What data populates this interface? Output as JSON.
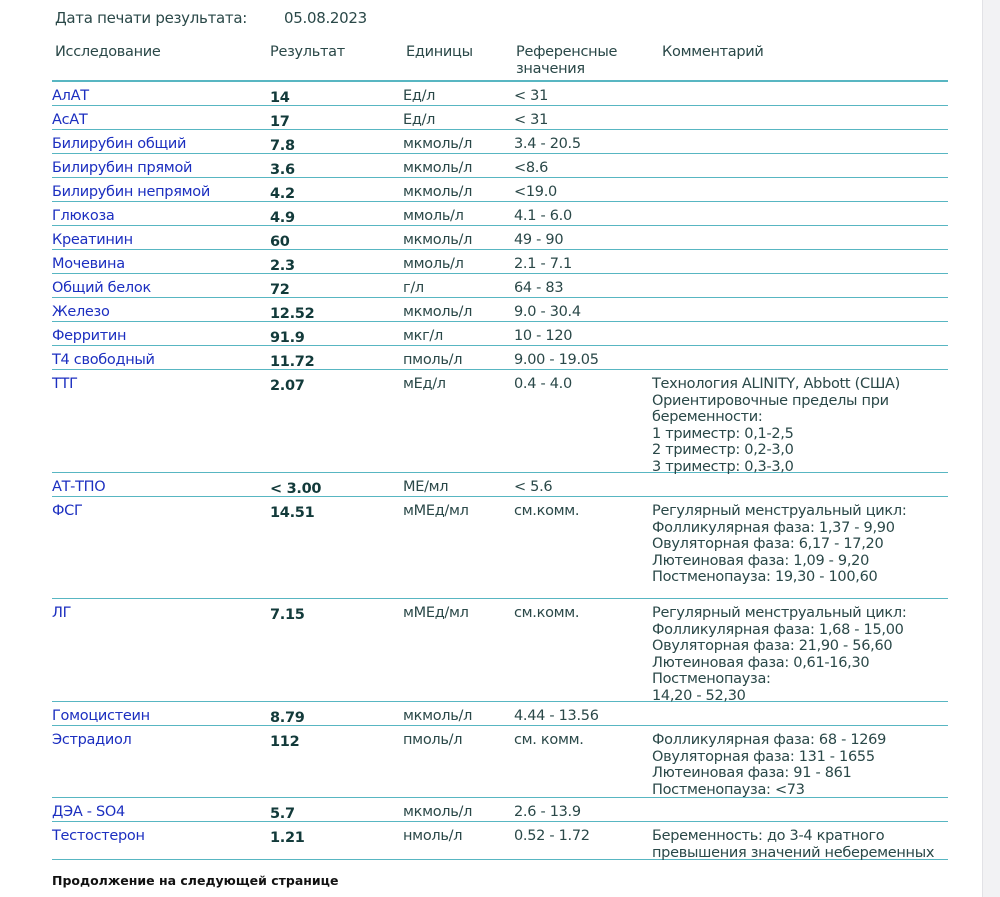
{
  "meta": {
    "print_date_label": "Дата печати результата:",
    "print_date": "05.08.2023"
  },
  "headers": {
    "test": "Исследование",
    "result": "Результат",
    "units": "Единицы",
    "reference": "Референсные\nзначения",
    "comment": "Комментарий"
  },
  "rows": [
    {
      "name": "АлАТ",
      "result": "14",
      "units": "Ед/л",
      "reference": "< 31",
      "comment": ""
    },
    {
      "name": "АсАТ",
      "result": "17",
      "units": "Ед/л",
      "reference": "< 31",
      "comment": ""
    },
    {
      "name": "Билирубин общий",
      "result": "7.8",
      "units": "мкмоль/л",
      "reference": "3.4 - 20.5",
      "comment": ""
    },
    {
      "name": "Билирубин прямой",
      "result": "3.6",
      "units": "мкмоль/л",
      "reference": "<8.6",
      "comment": ""
    },
    {
      "name": "Билирубин непрямой",
      "result": "4.2",
      "units": "мкмоль/л",
      "reference": "<19.0",
      "comment": ""
    },
    {
      "name": "Глюкоза",
      "result": "4.9",
      "units": "ммоль/л",
      "reference": "4.1 - 6.0",
      "comment": ""
    },
    {
      "name": "Креатинин",
      "result": "60",
      "units": "мкмоль/л",
      "reference": "49 - 90",
      "comment": ""
    },
    {
      "name": "Мочевина",
      "result": "2.3",
      "units": "ммоль/л",
      "reference": "2.1 - 7.1",
      "comment": ""
    },
    {
      "name": "Общий белок",
      "result": "72",
      "units": "г/л",
      "reference": "64 - 83",
      "comment": ""
    },
    {
      "name": "Железо",
      "result": "12.52",
      "units": "мкмоль/л",
      "reference": "9.0 - 30.4",
      "comment": ""
    },
    {
      "name": "Ферритин",
      "result": "91.9",
      "units": "мкг/л",
      "reference": "10 - 120",
      "comment": ""
    },
    {
      "name": "Т4 свободный",
      "result": "11.72",
      "units": "пмоль/л",
      "reference": "9.00 - 19.05",
      "comment": ""
    },
    {
      "name": "ТТГ",
      "result": "2.07",
      "units": "мЕд/л",
      "reference": "0.4 - 4.0",
      "comment": "Технология ALINITY, Abbott (США)\nОриентировочные пределы при\nбеременности:\n1 триместр: 0,1-2,5\n2 триместр: 0,2-3,0\n3 триместр: 0,3-3,0"
    },
    {
      "name": "АТ-ТПО",
      "result": "< 3.00",
      "units": "МЕ/мл",
      "reference": "< 5.6",
      "comment": ""
    },
    {
      "name": "ФСГ",
      "result": "14.51",
      "units": "мМЕд/мл",
      "reference": "см.комм.",
      "comment": "Регулярный менструальный цикл:\nФолликулярная фаза: 1,37 - 9,90\nОвуляторная фаза: 6,17 - 17,20\nЛютеиновая фаза: 1,09 - 9,20\nПостменопауза: 19,30 - 100,60"
    },
    {
      "name": "ЛГ",
      "result": "7.15",
      "units": "мМЕд/мл",
      "reference": "см.комм.",
      "comment": "Регулярный менструальный цикл:\nФолликулярная фаза: 1,68 - 15,00\nОвуляторная фаза: 21,90 - 56,60\nЛютеиновая фаза: 0,61-16,30\nПостменопауза:\n14,20 - 52,30"
    },
    {
      "name": "Гомоцистеин",
      "result": "8.79",
      "units": "мкмоль/л",
      "reference": "4.44 - 13.56",
      "comment": ""
    },
    {
      "name": "Эстрадиол",
      "result": "112",
      "units": "пмоль/л",
      "reference": "см. комм.",
      "comment": "Фолликулярная фаза: 68 - 1269\nОвуляторная фаза: 131 - 1655\nЛютеиновая фаза: 91 - 861\nПостменопауза: <73"
    },
    {
      "name": "ДЭА - SO4",
      "result": "5.7",
      "units": "мкмоль/л",
      "reference": "2.6 - 13.9",
      "comment": ""
    },
    {
      "name": "Тестостерон",
      "result": "1.21",
      "units": "нмоль/л",
      "reference": "0.52 - 1.72",
      "comment": "Беременность: до 3-4 кратного\nпревышения значений небеременных"
    }
  ],
  "footer": "Продолжение на следующей странице"
}
